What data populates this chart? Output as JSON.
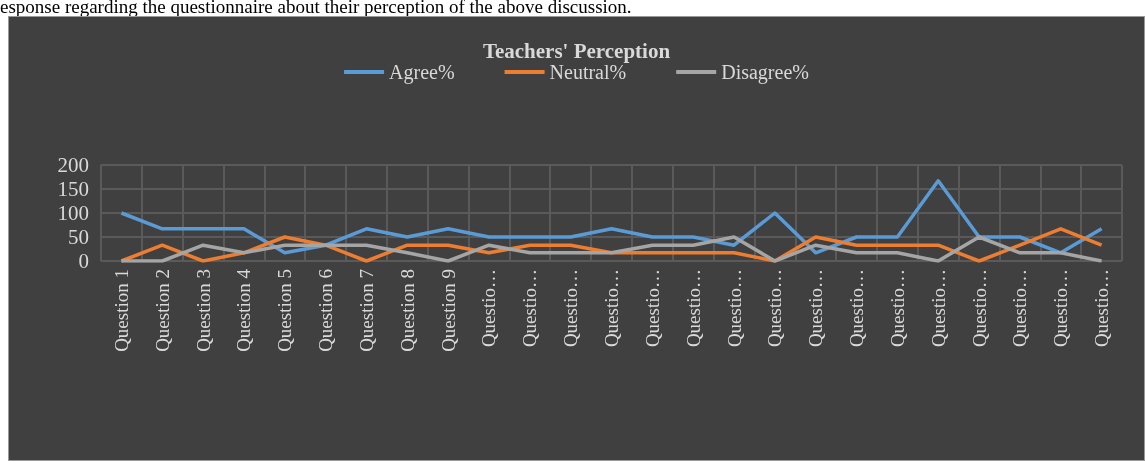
{
  "chart_data": {
    "type": "line",
    "title": "Teachers' Perception",
    "annotations": [
      "esponse regarding the questionnaire about their perception of the above discussion."
    ],
    "categories": [
      "Question 1",
      "Question 2",
      "Question 3",
      "Question 4",
      "Question 5",
      "Question 6",
      "Question 7",
      "Question 8",
      "Question 9",
      "Questio…",
      "Questio…",
      "Questio…",
      "Questio…",
      "Questio…",
      "Questio…",
      "Questio…",
      "Questio…",
      "Questio…",
      "Questio…",
      "Questio…",
      "Questio…",
      "Questio…",
      "Questio…",
      "Questio…",
      "Questio…"
    ],
    "series": [
      {
        "name": "Agree%",
        "color": "#5b9bd5",
        "values": [
          100,
          67,
          67,
          67,
          17,
          33,
          67,
          50,
          67,
          50,
          50,
          50,
          67,
          50,
          50,
          33,
          100,
          17,
          50,
          50,
          167,
          50,
          50,
          17,
          67
        ]
      },
      {
        "name": "Neutral%",
        "color": "#ed7d31",
        "values": [
          0,
          33,
          0,
          17,
          50,
          33,
          0,
          33,
          33,
          17,
          33,
          33,
          17,
          17,
          17,
          17,
          0,
          50,
          33,
          33,
          33,
          0,
          33,
          67,
          33
        ]
      },
      {
        "name": "Disagree%",
        "color": "#a5a5a5",
        "values": [
          0,
          0,
          33,
          17,
          33,
          33,
          33,
          17,
          0,
          33,
          17,
          17,
          17,
          33,
          33,
          50,
          0,
          33,
          17,
          17,
          0,
          50,
          17,
          17,
          0
        ]
      }
    ],
    "ylim": [
      0,
      200
    ],
    "yticks": [
      0,
      50,
      100,
      150,
      200
    ],
    "grid": true,
    "legend": "top",
    "marker": "none",
    "line_style": "solid"
  }
}
